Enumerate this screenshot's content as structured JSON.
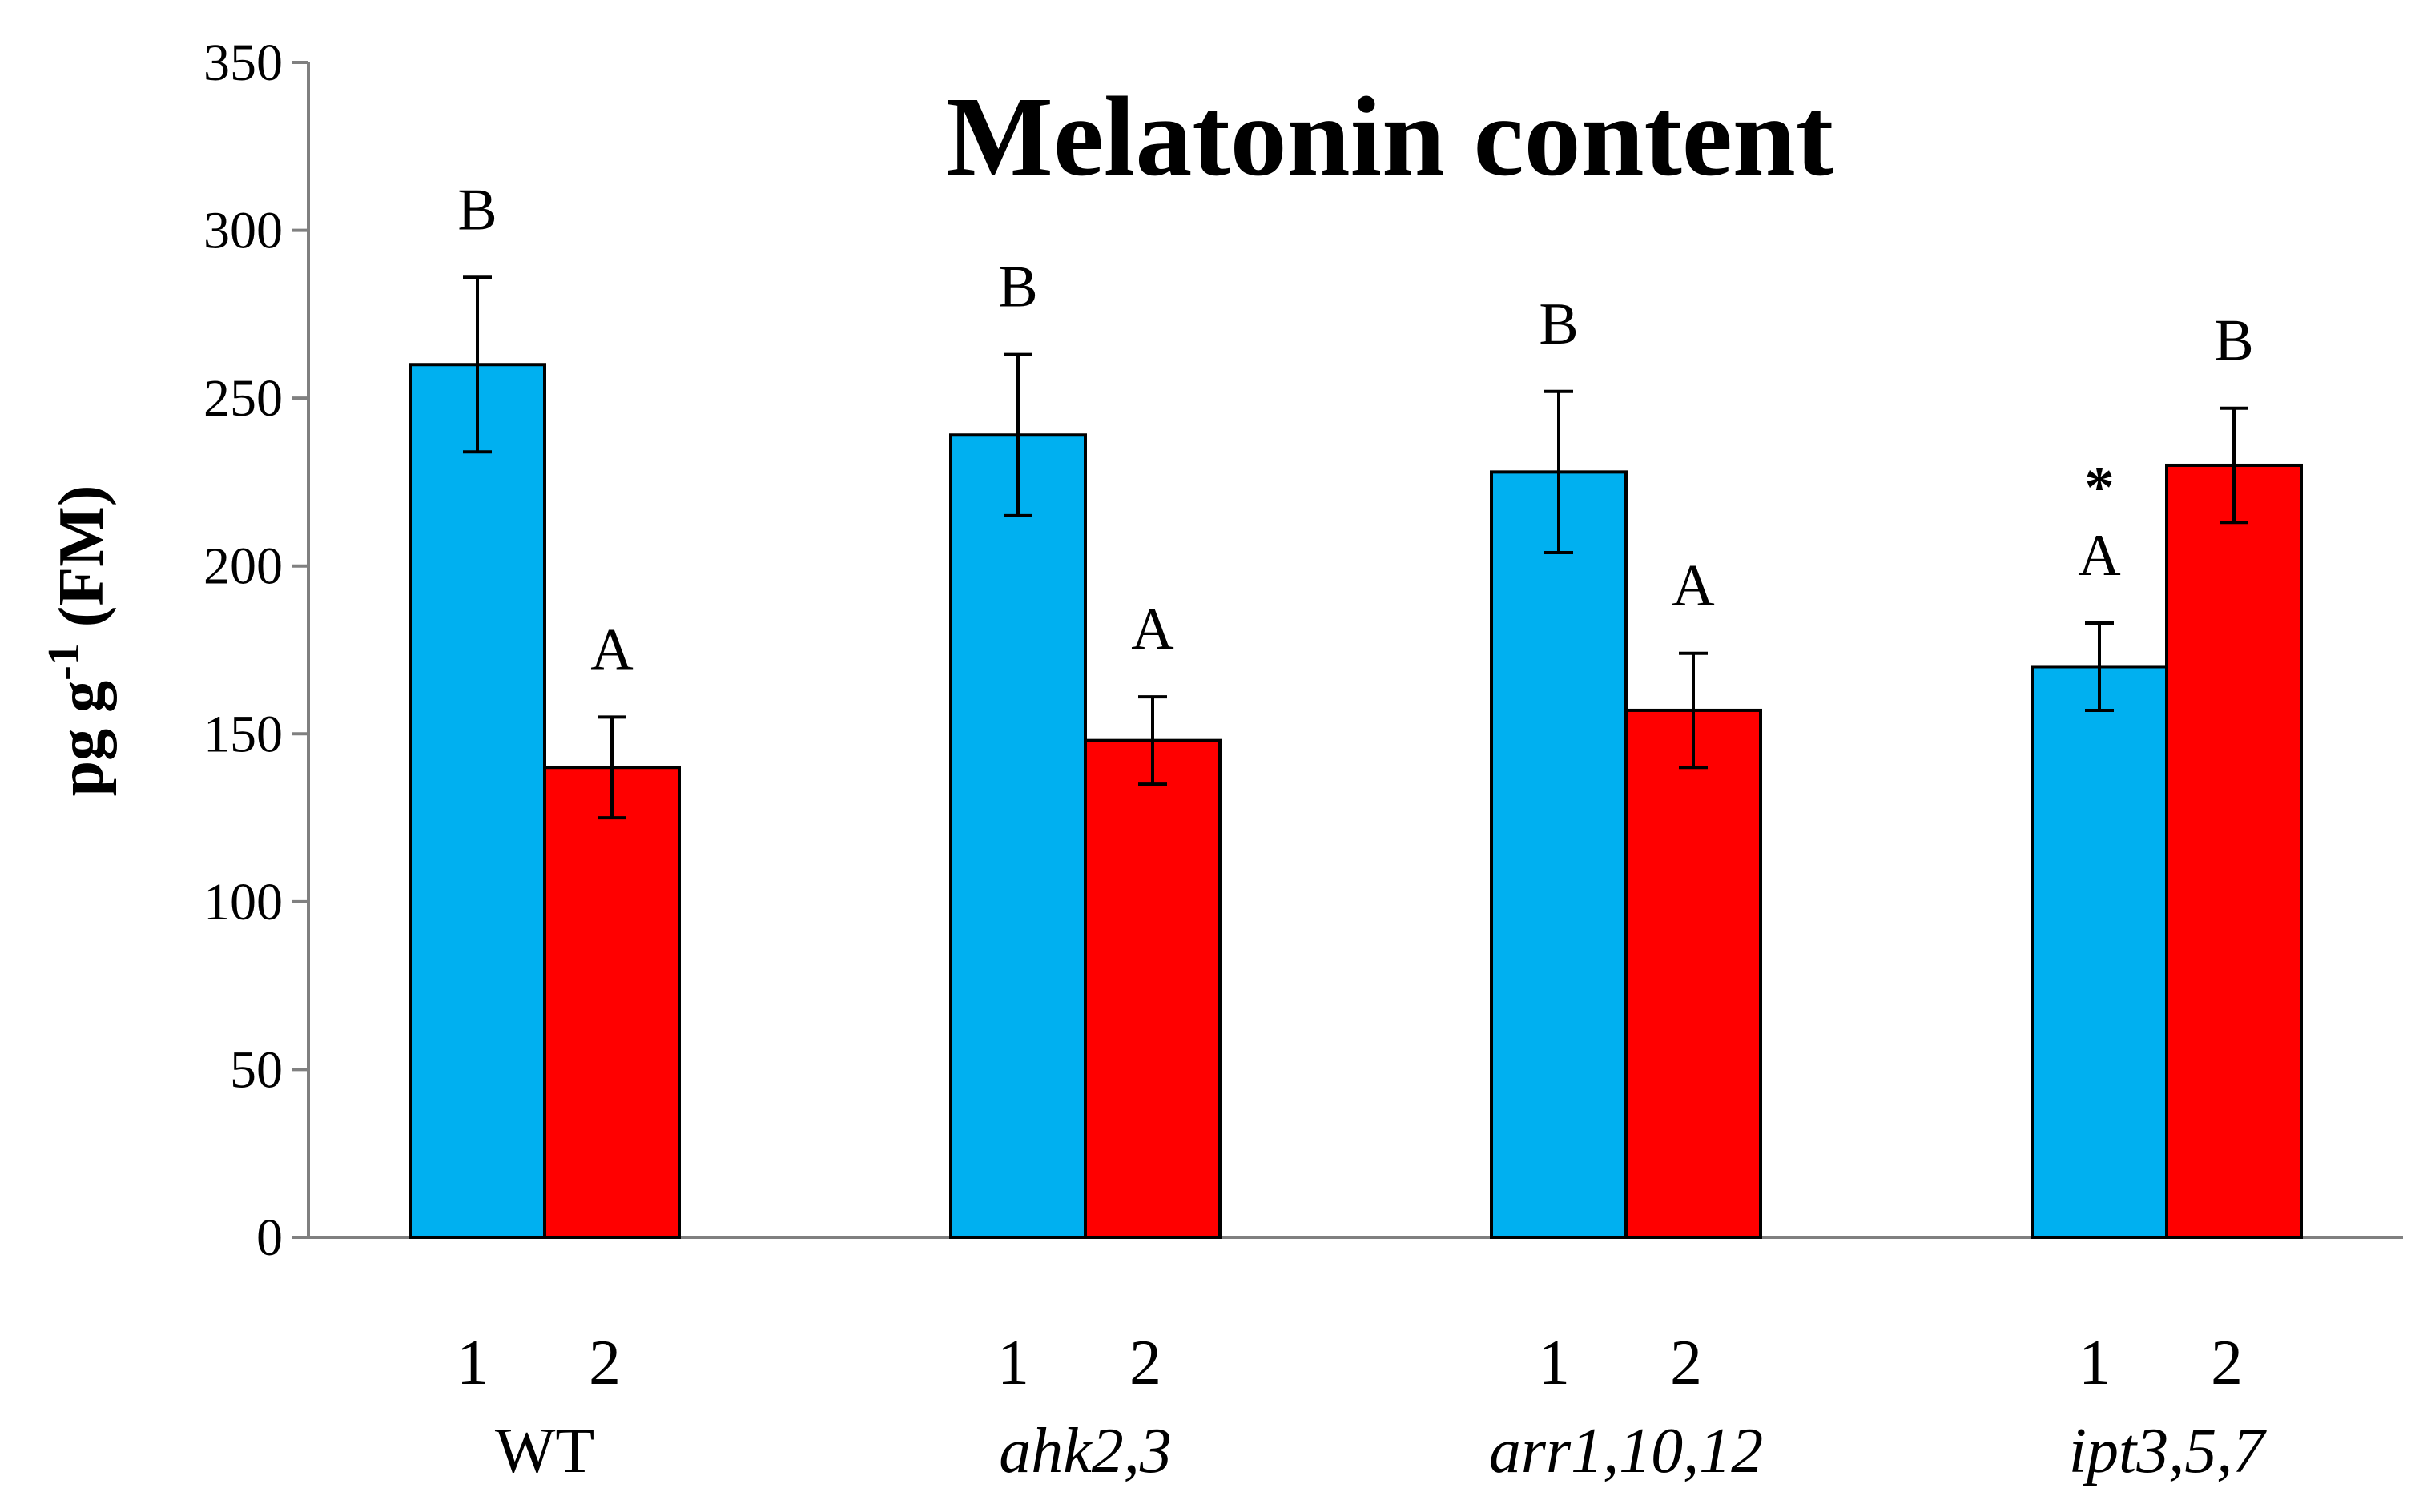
{
  "chart_data": {
    "type": "bar",
    "title": "Melatonin content",
    "ylabel": "pg g-1 (FM)",
    "ylabel_parts": {
      "main": "pg g",
      "superscript": "-1",
      "suffix": " (FM)"
    },
    "xlabel": "",
    "ylim": [
      0,
      350
    ],
    "yticks": [
      "0",
      "50",
      "100",
      "150",
      "200",
      "250",
      "300",
      "350"
    ],
    "categories": [
      "WT",
      "ahk2,3",
      "arr1,10,12",
      "ipt3,5,7"
    ],
    "category_italic": [
      false,
      true,
      true,
      true
    ],
    "series": [
      {
        "name": "1",
        "color": "#00b0f0",
        "values": [
          260,
          239,
          228,
          170
        ],
        "errors": [
          26,
          24,
          24,
          13
        ],
        "letters": [
          "B",
          "B",
          "B",
          "A"
        ],
        "marks": [
          "",
          "",
          "",
          "*"
        ]
      },
      {
        "name": "2",
        "color": "#ff0000",
        "values": [
          140,
          148,
          157,
          230
        ],
        "errors": [
          15,
          13,
          17,
          17
        ],
        "letters": [
          "A",
          "A",
          "A",
          "B"
        ],
        "marks": [
          "",
          "",
          "",
          ""
        ]
      }
    ],
    "grid": false,
    "legend": "none"
  }
}
